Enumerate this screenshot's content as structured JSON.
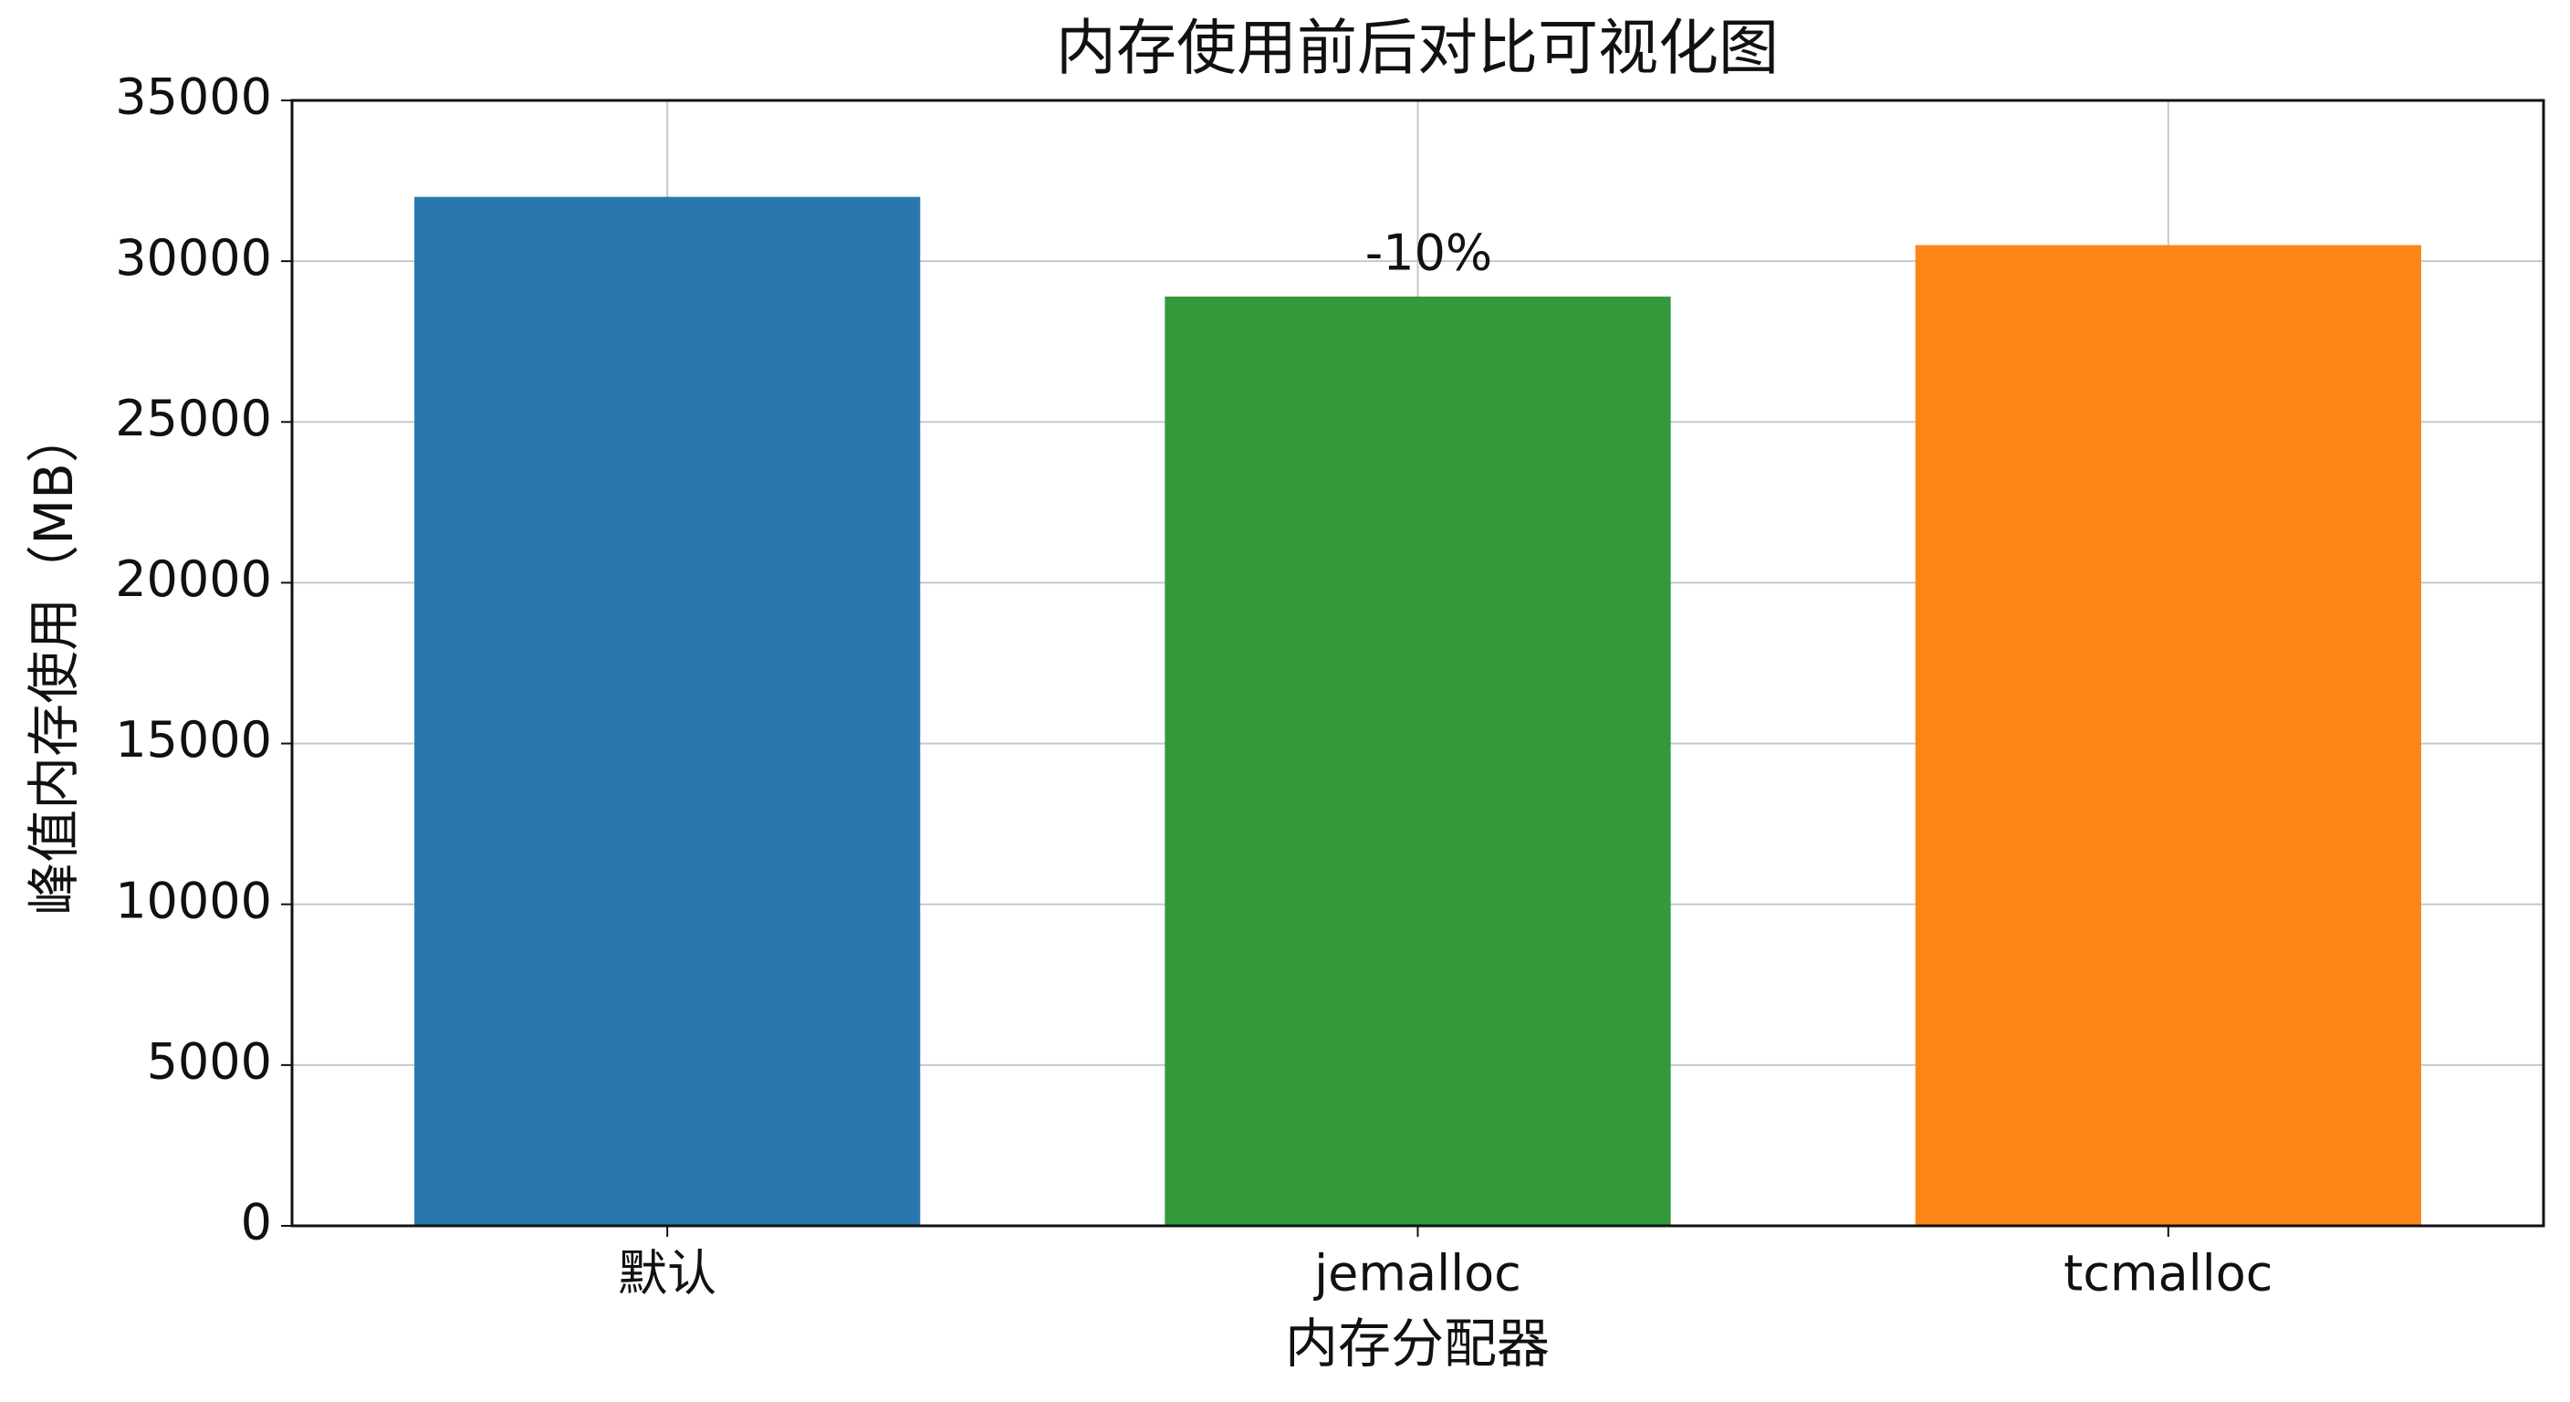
{
  "chart_data": {
    "type": "bar",
    "title": "内存使用前后对比可视化图",
    "x_label": "内存分配器",
    "y_label": "峰值内存使用（MB）",
    "categories": [
      "默认",
      "jemalloc",
      "tcmalloc"
    ],
    "values": [
      32000,
      28900,
      30500
    ],
    "colors": [
      "#2a77b0",
      "#33993a",
      "#fd8619"
    ],
    "annotation": "-10%",
    "ylim": [
      0,
      35000
    ],
    "yticks": [
      0,
      5000,
      10000,
      15000,
      20000,
      25000,
      30000,
      35000
    ],
    "grid": true
  }
}
